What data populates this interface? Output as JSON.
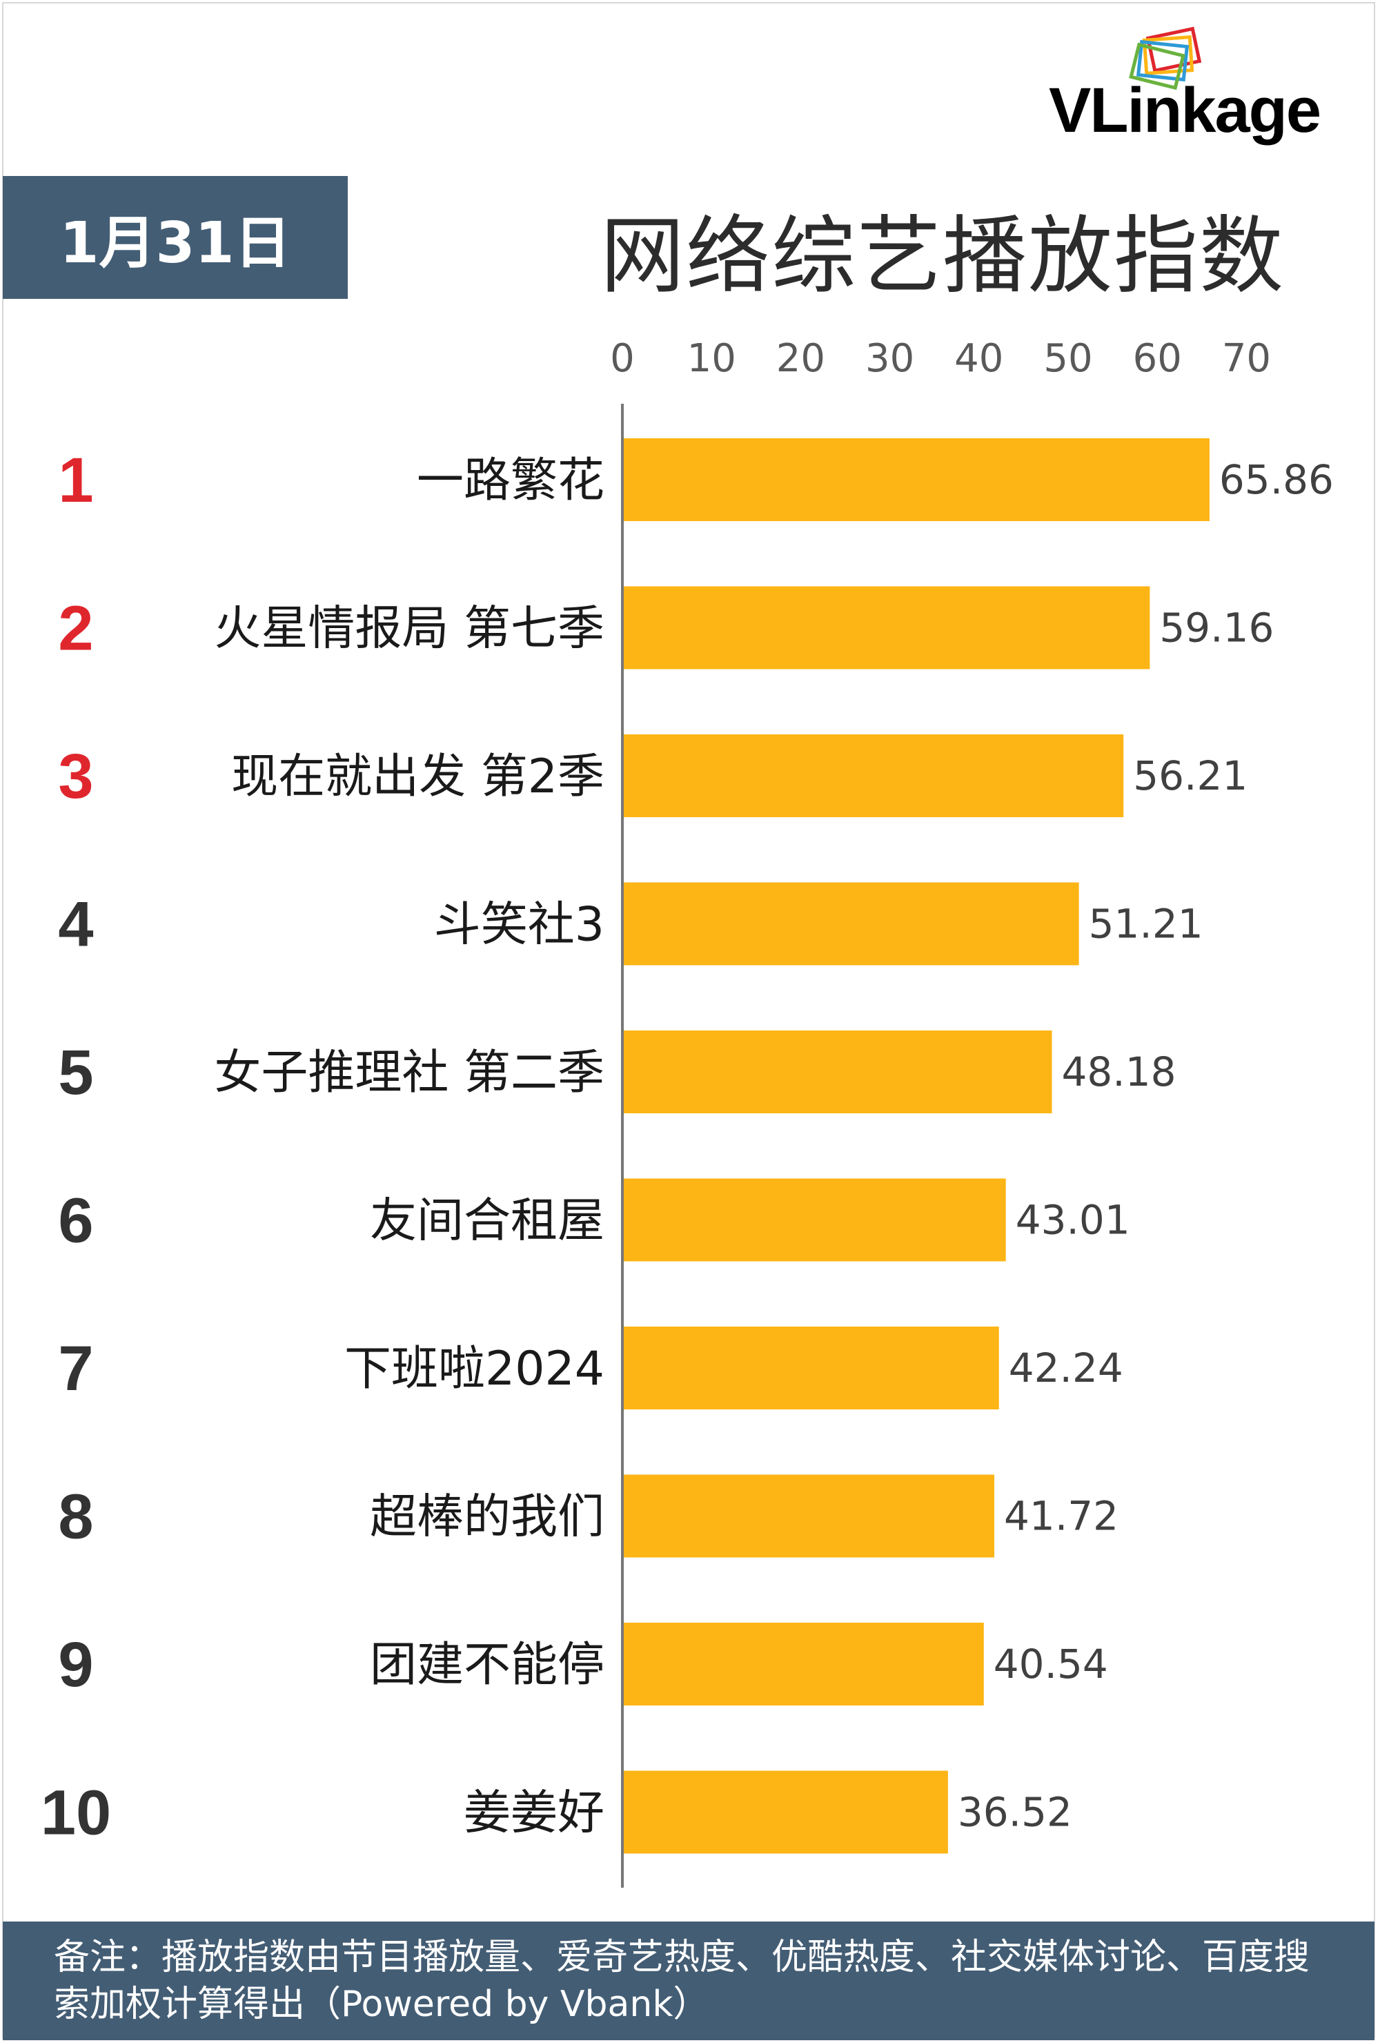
{
  "header": {
    "brand": "VLinkage",
    "date": "1月31日",
    "title": "网络综艺播放指数"
  },
  "colors": {
    "bar": "#FDB515",
    "rank_top3": "#E0262D",
    "rank_other": "#333333",
    "date_box": "#435D74",
    "footer": "#435D74",
    "axis_line": "#777777",
    "brand": "#E0262D"
  },
  "chart_data": {
    "type": "bar",
    "orientation": "horizontal",
    "title": "网络综艺播放指数",
    "xlim": [
      0,
      70
    ],
    "x_ticks": [
      "0",
      "10",
      "20",
      "30",
      "40",
      "50",
      "60",
      "70"
    ],
    "x_tick_values": [
      0,
      10,
      20,
      30,
      40,
      50,
      60,
      70
    ],
    "ranks": [
      "1",
      "2",
      "3",
      "4",
      "5",
      "6",
      "7",
      "8",
      "9",
      "10"
    ],
    "categories": [
      "一路繁花",
      "火星情报局 第七季",
      "现在就出发 第2季",
      "斗笑社3",
      "女子推理社 第二季",
      "友间合租屋",
      "下班啦2024",
      "超棒的我们",
      "团建不能停",
      "姜姜好"
    ],
    "values": [
      65.86,
      59.16,
      56.21,
      51.21,
      48.18,
      43.01,
      42.24,
      41.72,
      40.54,
      36.52
    ],
    "value_labels": [
      "65.86",
      "59.16",
      "56.21",
      "51.21",
      "48.18",
      "43.01",
      "42.24",
      "41.72",
      "40.54",
      "36.52"
    ],
    "grid": false,
    "legend": "none"
  },
  "footer": {
    "note": "备注：播放指数由节目播放量、爱奇艺热度、优酷热度、社交媒体讨论、百度搜索加权计算得出（Powered by Vbank）"
  }
}
